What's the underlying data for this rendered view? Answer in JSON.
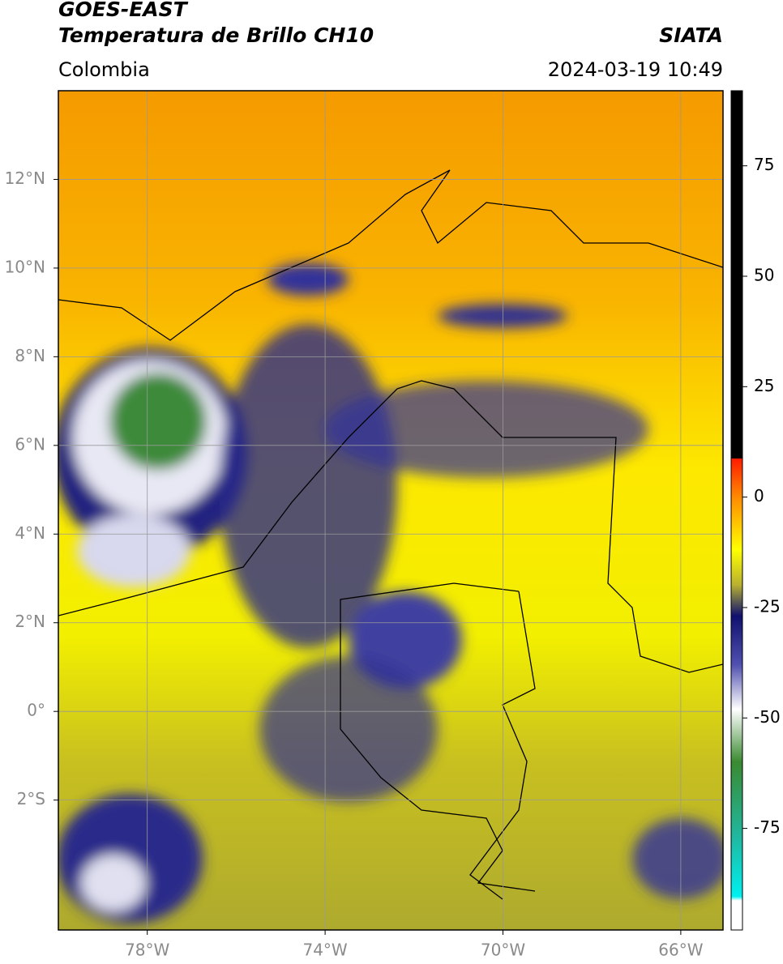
{
  "header": {
    "title": "GOES-EAST",
    "subtitle": "Temperatura de Brillo CH10",
    "source": "SIATA",
    "region": "Colombia",
    "datetime": "2024-03-19 10:49"
  },
  "map": {
    "xlim": [
      -80,
      -65.05
    ],
    "ylim": [
      -4.93,
      14
    ],
    "xticks": [
      {
        "value": -78,
        "label": "78°W"
      },
      {
        "value": -74,
        "label": "74°W"
      },
      {
        "value": -70,
        "label": "70°W"
      },
      {
        "value": -66,
        "label": "66°W"
      }
    ],
    "yticks": [
      {
        "value": 12,
        "label": "12°N"
      },
      {
        "value": 10,
        "label": "10°N"
      },
      {
        "value": 8,
        "label": "8°N"
      },
      {
        "value": 6,
        "label": "6°N"
      },
      {
        "value": 4,
        "label": "4°N"
      },
      {
        "value": 2,
        "label": "2°N"
      },
      {
        "value": 0,
        "label": "0°"
      },
      {
        "value": -2,
        "label": "2°S"
      }
    ],
    "grid": true
  },
  "colorbar": {
    "lim": [
      -98,
      92
    ],
    "ticks": [
      75,
      50,
      25,
      0,
      -25,
      -50,
      -75
    ]
  }
}
